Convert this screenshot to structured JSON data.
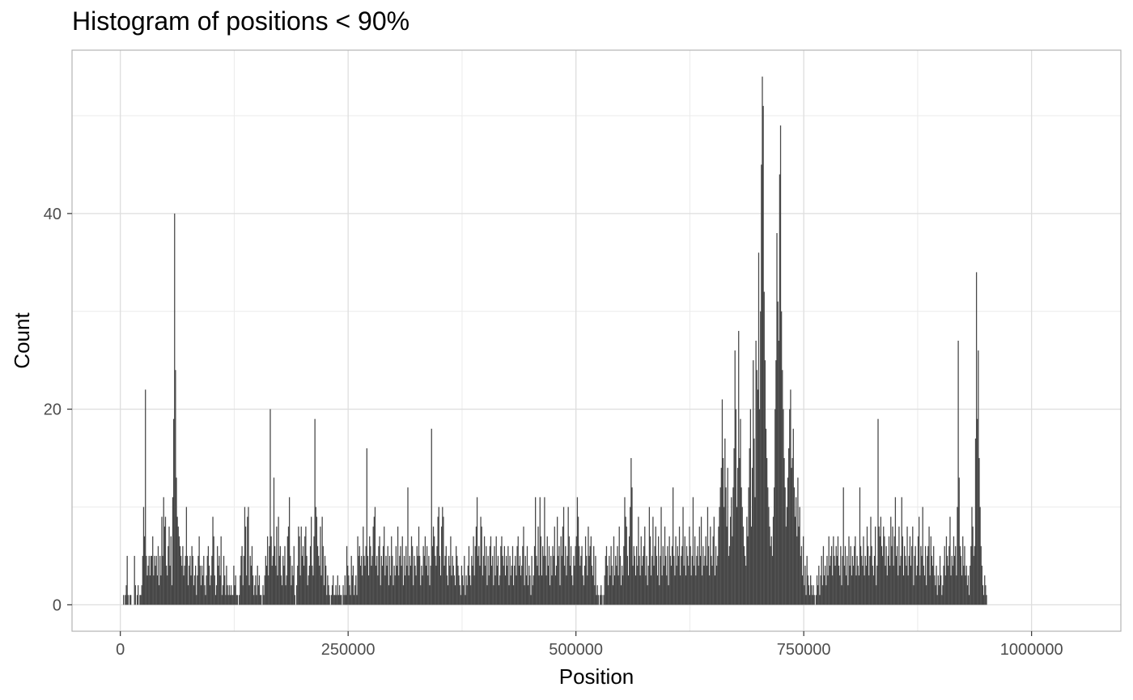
{
  "chart_data": {
    "type": "bar",
    "title": "Histogram of positions < 90%",
    "xlabel": "Position",
    "ylabel": "Count",
    "xlim": [
      -53000,
      1098000
    ],
    "ylim": [
      -2.7,
      56.7
    ],
    "x_ticks": [
      0,
      250000,
      500000,
      750000,
      1000000
    ],
    "x_tick_labels": [
      "0",
      "250000",
      "500000",
      "750000",
      "1000000"
    ],
    "y_ticks": [
      0,
      20,
      40
    ],
    "y_tick_labels": [
      "0",
      "20",
      "40"
    ],
    "grid": true,
    "bin_width": 1000,
    "bar_color": "#474747",
    "bins_start": 3000,
    "counts": [
      1,
      0,
      1,
      2,
      5,
      1,
      0,
      1,
      1,
      0,
      0,
      0,
      5,
      2,
      0,
      1,
      2,
      0,
      1,
      1,
      2,
      5,
      10,
      7,
      22,
      5,
      3,
      4,
      5,
      3,
      5,
      5,
      7,
      3,
      5,
      4,
      5,
      3,
      6,
      2,
      5,
      3,
      9,
      5,
      11,
      8,
      9,
      4,
      3,
      6,
      8,
      4,
      7,
      2,
      11,
      19,
      40,
      24,
      13,
      9,
      8,
      7,
      6,
      5,
      4,
      6,
      3,
      4,
      5,
      10,
      5,
      2,
      4,
      5,
      3,
      6,
      5,
      2,
      3,
      4,
      1,
      3,
      5,
      7,
      4,
      2,
      4,
      3,
      5,
      2,
      1,
      3,
      5,
      6,
      4,
      2,
      3,
      5,
      9,
      7,
      3,
      1,
      2,
      6,
      4,
      5,
      3,
      7,
      1,
      2,
      5,
      3,
      1,
      4,
      2,
      1,
      2,
      1,
      2,
      1,
      1,
      4,
      2,
      3,
      1,
      1,
      0,
      1,
      3,
      5,
      6,
      2,
      5,
      10,
      8,
      3,
      9,
      10,
      2,
      5,
      4,
      6,
      3,
      1,
      2,
      3,
      1,
      4,
      2,
      3,
      1,
      1,
      0,
      2,
      1,
      3,
      5,
      4,
      7,
      3,
      6,
      20,
      7,
      4,
      5,
      13,
      6,
      4,
      8,
      3,
      9,
      5,
      6,
      3,
      2,
      5,
      4,
      6,
      2,
      3,
      7,
      8,
      11,
      5,
      2,
      4,
      3,
      6,
      1,
      0,
      2,
      4,
      8,
      7,
      3,
      8,
      5,
      6,
      4,
      7,
      8,
      5,
      2,
      3,
      4,
      6,
      9,
      4,
      3,
      7,
      19,
      10,
      9,
      6,
      5,
      4,
      8,
      3,
      9,
      6,
      2,
      5,
      4,
      1,
      3,
      2,
      1,
      0,
      1,
      2,
      3,
      1,
      1,
      2,
      1,
      3,
      1,
      2,
      1,
      1,
      0,
      2,
      1,
      3,
      1,
      6,
      4,
      3,
      2,
      1,
      5,
      3,
      4,
      1,
      2,
      3,
      1,
      7,
      5,
      6,
      4,
      5,
      3,
      8,
      5,
      4,
      6,
      16,
      5,
      3,
      7,
      6,
      4,
      5,
      8,
      9,
      10,
      4,
      5,
      3,
      6,
      7,
      2,
      5,
      4,
      6,
      8,
      3,
      5,
      4,
      6,
      2,
      5,
      3,
      7,
      5,
      2,
      4,
      3,
      6,
      4,
      8,
      3,
      5,
      6,
      4,
      7,
      2,
      5,
      3,
      6,
      4,
      12,
      3,
      5,
      4,
      7,
      6,
      2,
      5,
      4,
      3,
      6,
      5,
      8,
      5,
      2,
      4,
      3,
      6,
      5,
      7,
      4,
      6,
      3,
      5,
      2,
      4,
      18,
      6,
      8,
      7,
      5,
      4,
      6,
      9,
      10,
      5,
      3,
      8,
      10,
      9,
      4,
      5,
      6,
      3,
      2,
      5,
      4,
      7,
      3,
      5,
      4,
      3,
      2,
      6,
      5,
      4,
      3,
      2,
      1,
      4,
      3,
      2,
      5,
      1,
      3,
      2,
      4,
      6,
      3,
      2,
      5,
      4,
      7,
      3,
      6,
      8,
      11,
      5,
      6,
      4,
      9,
      8,
      3,
      5,
      7,
      4,
      6,
      2,
      5,
      3,
      6,
      7,
      4,
      5,
      2,
      6,
      3,
      7,
      4,
      5,
      2,
      3,
      6,
      7,
      5,
      4,
      6,
      3,
      5,
      4,
      6,
      2,
      5,
      3,
      4,
      6,
      2,
      4,
      5,
      3,
      6,
      7,
      4,
      5,
      3,
      4,
      6,
      8,
      2,
      5,
      3,
      6,
      2,
      4,
      3,
      1,
      5,
      2,
      3,
      6,
      11,
      5,
      4,
      8,
      3,
      11,
      7,
      3,
      6,
      5,
      11,
      5,
      3,
      7,
      4,
      6,
      2,
      5,
      3,
      6,
      5,
      8,
      3,
      4,
      9,
      5,
      6,
      2,
      7,
      5,
      8,
      10,
      4,
      6,
      3,
      5,
      10,
      7,
      4,
      6,
      3,
      2,
      5,
      4,
      6,
      7,
      11,
      9,
      6,
      4,
      5,
      6,
      3,
      2,
      4,
      7,
      5,
      3,
      8,
      5,
      6,
      7,
      4,
      3,
      6,
      2,
      5,
      1,
      2,
      1,
      0,
      1,
      2,
      1,
      0,
      1,
      3,
      5,
      6,
      4,
      2,
      5,
      3,
      6,
      4,
      2,
      7,
      3,
      5,
      4,
      6,
      3,
      8,
      5,
      2,
      4,
      3,
      6,
      11,
      9,
      8,
      5,
      3,
      7,
      10,
      15,
      12,
      4,
      6,
      5,
      3,
      6,
      4,
      9,
      5,
      3,
      7,
      4,
      5,
      6,
      8,
      3,
      5,
      2,
      4,
      10,
      7,
      3,
      5,
      9,
      4,
      6,
      8,
      5,
      3,
      7,
      2,
      5,
      10,
      3,
      6,
      4,
      8,
      5,
      3,
      6,
      2,
      7,
      5,
      4,
      6,
      12,
      5,
      3,
      7,
      4,
      6,
      5,
      8,
      3,
      5,
      6,
      10,
      4,
      7,
      3,
      6,
      5,
      4,
      8,
      6,
      3,
      5,
      11,
      4,
      7,
      3,
      5,
      6,
      4,
      8,
      5,
      9,
      3,
      6,
      4,
      5,
      7,
      4,
      10,
      6,
      3,
      8,
      5,
      4,
      7,
      9,
      3,
      6,
      4,
      5,
      8,
      10,
      12,
      14,
      21,
      15,
      10,
      17,
      12,
      8,
      14,
      5,
      6,
      9,
      11,
      7,
      12,
      16,
      26,
      20,
      10,
      14,
      28,
      15,
      19,
      12,
      10,
      8,
      6,
      5,
      4,
      9,
      7,
      12,
      16,
      20,
      8,
      14,
      25,
      17,
      11,
      27,
      24,
      22,
      36,
      20,
      30,
      45,
      54,
      51,
      32,
      25,
      18,
      15,
      12,
      10,
      8,
      6,
      7,
      5,
      9,
      12,
      20,
      25,
      38,
      31,
      27,
      44,
      49,
      30,
      24,
      20,
      15,
      12,
      8,
      10,
      13,
      16,
      20,
      22,
      14,
      15,
      18,
      12,
      9,
      11,
      7,
      13,
      8,
      10,
      5,
      6,
      3,
      7,
      2,
      4,
      1,
      5,
      3,
      2,
      1,
      3,
      2,
      1,
      2,
      1,
      0,
      1,
      3,
      2,
      4,
      1,
      3,
      5,
      2,
      6,
      3,
      4,
      2,
      5,
      3,
      7,
      4,
      5,
      6,
      3,
      7,
      5,
      4,
      6,
      5,
      7,
      4,
      3,
      6,
      2,
      5,
      12,
      4,
      6,
      3,
      5,
      2,
      7,
      4,
      6,
      3,
      5,
      4,
      6,
      7,
      3,
      5,
      4,
      3,
      12,
      6,
      5,
      4,
      7,
      3,
      5,
      4,
      8,
      6,
      3,
      5,
      9,
      6,
      4,
      3,
      5,
      8,
      2,
      4,
      19,
      8,
      7,
      9,
      6,
      5,
      8,
      7,
      4,
      6,
      3,
      5,
      7,
      4,
      9,
      6,
      8,
      4,
      7,
      11,
      5,
      6,
      3,
      8,
      4,
      5,
      11,
      7,
      3,
      6,
      5,
      4,
      8,
      3,
      5,
      7,
      4,
      6,
      8,
      2,
      5,
      6,
      3,
      4,
      7,
      9,
      3,
      6,
      5,
      10,
      4,
      3,
      6,
      2,
      5,
      6,
      8,
      3,
      7,
      5,
      4,
      6,
      3,
      2,
      4,
      1,
      3,
      2,
      5,
      3,
      1,
      2,
      4,
      6,
      3,
      7,
      5,
      4,
      6,
      9,
      3,
      5,
      4,
      7,
      5,
      6,
      3,
      10,
      27,
      13,
      6,
      5,
      3,
      7,
      4,
      6,
      3,
      4,
      2,
      3,
      1,
      4,
      6,
      10,
      8,
      5,
      6,
      17,
      34,
      19,
      26,
      15,
      10,
      6,
      4,
      2,
      1,
      3,
      2,
      1
    ]
  }
}
